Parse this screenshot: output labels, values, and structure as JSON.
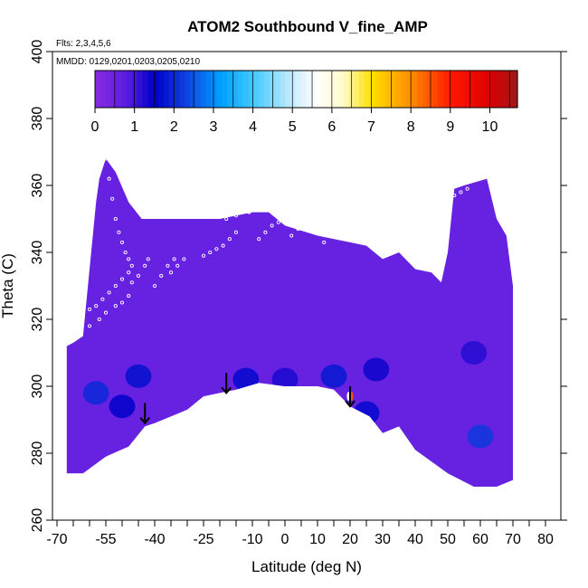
{
  "chart_data": {
    "type": "heatmap",
    "title": "ATOM2 Southbound V_fine_AMP",
    "flights_label": "Flts: 2,3,4,5,6",
    "dates_label": "MMDD: 0129,0201,0203,0205,0210",
    "xlabel": "Latitude (deg N)",
    "ylabel": "Theta (C)",
    "xlim": [
      -70,
      80
    ],
    "ylim": [
      260,
      400
    ],
    "x_ticks": [
      -70,
      -55,
      -40,
      -25,
      -10,
      0,
      10,
      20,
      30,
      40,
      50,
      60,
      70,
      80
    ],
    "y_ticks": [
      260,
      280,
      300,
      320,
      340,
      360,
      380,
      400
    ],
    "colorbar": {
      "min": 0,
      "max": 10.7,
      "ticks": [
        0,
        1,
        2,
        3,
        4,
        5,
        6,
        7,
        8,
        9,
        10
      ],
      "stops": [
        {
          "v": 0,
          "c": "#8a2be2"
        },
        {
          "v": 0.8,
          "c": "#5a1de0"
        },
        {
          "v": 1.5,
          "c": "#0000c8"
        },
        {
          "v": 2.3,
          "c": "#1040e0"
        },
        {
          "v": 3.2,
          "c": "#00a0ff"
        },
        {
          "v": 4.0,
          "c": "#40c8ff"
        },
        {
          "v": 5.0,
          "c": "#c8ecff"
        },
        {
          "v": 5.6,
          "c": "#ffffff"
        },
        {
          "v": 6.3,
          "c": "#fffbc8"
        },
        {
          "v": 7.0,
          "c": "#ffe000"
        },
        {
          "v": 8.0,
          "c": "#ff8c00"
        },
        {
          "v": 9.0,
          "c": "#ff1a00"
        },
        {
          "v": 10.0,
          "c": "#dc0000"
        },
        {
          "v": 10.7,
          "c": "#a01818"
        }
      ]
    },
    "background_value": 0.6,
    "data_region": {
      "top": [
        [
          -67,
          312
        ],
        [
          -65,
          313
        ],
        [
          -62,
          315
        ],
        [
          -60,
          335
        ],
        [
          -58,
          355
        ],
        [
          -57,
          362
        ],
        [
          -55,
          368
        ],
        [
          -52,
          364
        ],
        [
          -48,
          355
        ],
        [
          -44,
          350
        ],
        [
          -40,
          350
        ],
        [
          -30,
          350
        ],
        [
          -20,
          350
        ],
        [
          -10,
          352
        ],
        [
          -5,
          352
        ],
        [
          0,
          348
        ],
        [
          10,
          345
        ],
        [
          20,
          343
        ],
        [
          25,
          342
        ],
        [
          30,
          338
        ],
        [
          35,
          340
        ],
        [
          40,
          335
        ],
        [
          45,
          334
        ],
        [
          48,
          331
        ],
        [
          50,
          340
        ],
        [
          52,
          359
        ],
        [
          55,
          360
        ],
        [
          62,
          362
        ],
        [
          65,
          350
        ],
        [
          68,
          345
        ],
        [
          70,
          330
        ]
      ],
      "bottom": [
        [
          70,
          272
        ],
        [
          65,
          270
        ],
        [
          58,
          270
        ],
        [
          50,
          274
        ],
        [
          40,
          281
        ],
        [
          35,
          288
        ],
        [
          30,
          286
        ],
        [
          26,
          291
        ],
        [
          20,
          294
        ],
        [
          15,
          299
        ],
        [
          10,
          300
        ],
        [
          5,
          300
        ],
        [
          0,
          300
        ],
        [
          -8,
          301
        ],
        [
          -15,
          299
        ],
        [
          -25,
          297
        ],
        [
          -30,
          293
        ],
        [
          -40,
          289
        ],
        [
          -43,
          288
        ],
        [
          -48,
          282
        ],
        [
          -55,
          279
        ],
        [
          -62,
          274
        ],
        [
          -67,
          274
        ]
      ]
    },
    "enhanced_cells": [
      {
        "lat": -58,
        "theta": 298,
        "value": 2.0
      },
      {
        "lat": -50,
        "theta": 294,
        "value": 1.5
      },
      {
        "lat": -45,
        "theta": 303,
        "value": 1.7
      },
      {
        "lat": -12,
        "theta": 302,
        "value": 1.6
      },
      {
        "lat": 0,
        "theta": 302,
        "value": 1.3
      },
      {
        "lat": 15,
        "theta": 303,
        "value": 1.8
      },
      {
        "lat": 25,
        "theta": 292,
        "value": 1.6
      },
      {
        "lat": 28,
        "theta": 305,
        "value": 1.4
      },
      {
        "lat": 60,
        "theta": 285,
        "value": 2.2
      },
      {
        "lat": 58,
        "theta": 310,
        "value": 1.2
      },
      {
        "lat": 20.5,
        "theta": 297,
        "value": 8.5
      },
      {
        "lat": 19.5,
        "theta": 297,
        "value": 5.5
      }
    ],
    "sample_tracks": [
      {
        "lat": [
          -67,
          -64,
          -62,
          -60,
          -58,
          -56,
          -54,
          -52,
          -50,
          -48
        ],
        "theta": [
          322,
          323,
          322,
          323,
          324,
          326,
          328,
          330,
          332,
          334
        ]
      },
      {
        "lat": [
          -60,
          -57,
          -55,
          -52,
          -50,
          -48
        ],
        "theta": [
          318,
          320,
          322,
          324,
          325,
          327
        ]
      },
      {
        "lat": [
          -47,
          -45,
          -43,
          -42
        ],
        "theta": [
          331,
          333,
          336,
          338
        ]
      },
      {
        "lat": [
          -40,
          -38,
          -36,
          -34
        ],
        "theta": [
          330,
          333,
          336,
          338
        ]
      },
      {
        "lat": [
          -35,
          -33,
          -31
        ],
        "theta": [
          334,
          336,
          338
        ]
      },
      {
        "lat": [
          -25,
          -23,
          -21,
          -19,
          -17,
          -15
        ],
        "theta": [
          339,
          340,
          341,
          342,
          344,
          346
        ]
      },
      {
        "lat": [
          -18,
          -15,
          -13,
          -11
        ],
        "theta": [
          350,
          351,
          352,
          352
        ]
      },
      {
        "lat": [
          -8,
          -6,
          -4,
          -2
        ],
        "theta": [
          344,
          346,
          348,
          349
        ]
      },
      {
        "lat": [
          2,
          4,
          6,
          8
        ],
        "theta": [
          345,
          347,
          348,
          349
        ]
      },
      {
        "lat": [
          12,
          14,
          16
        ],
        "theta": [
          343,
          345,
          346
        ]
      },
      {
        "lat": [
          50,
          52,
          54,
          56
        ],
        "theta": [
          356,
          357,
          358,
          359
        ]
      },
      {
        "lat": [
          -55,
          -54,
          -53,
          -52,
          -51,
          -50,
          -49,
          -48,
          -47
        ],
        "theta": [
          368,
          362,
          356,
          350,
          346,
          343,
          340,
          338,
          336
        ]
      }
    ],
    "arrows": [
      {
        "lat": -43,
        "theta_from": 295,
        "theta_to": 289
      },
      {
        "lat": -18,
        "theta_from": 304,
        "theta_to": 298
      },
      {
        "lat": 20,
        "theta_from": 300,
        "theta_to": 294
      }
    ]
  }
}
